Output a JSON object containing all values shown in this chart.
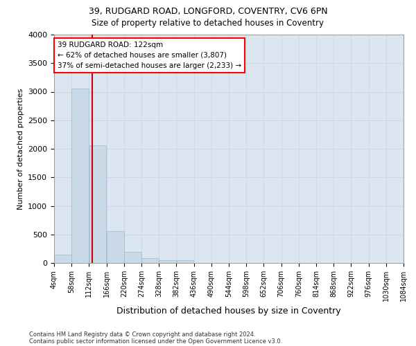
{
  "title_line1": "39, RUDGARD ROAD, LONGFORD, COVENTRY, CV6 6PN",
  "title_line2": "Size of property relative to detached houses in Coventry",
  "xlabel": "Distribution of detached houses by size in Coventry",
  "ylabel": "Number of detached properties",
  "footnote1": "Contains HM Land Registry data © Crown copyright and database right 2024.",
  "footnote2": "Contains public sector information licensed under the Open Government Licence v3.0.",
  "annotation_title": "39 RUDGARD ROAD: 122sqm",
  "annotation_line2": "← 62% of detached houses are smaller (3,807)",
  "annotation_line3": "37% of semi-detached houses are larger (2,233) →",
  "bar_color": "#c9d9e8",
  "bar_edge_color": "#a0b8cc",
  "vline_color": "#cc0000",
  "vline_x": 122,
  "bin_edges": [
    4,
    58,
    112,
    166,
    220,
    274,
    328,
    382,
    436,
    490,
    544,
    598,
    652,
    706,
    760,
    814,
    868,
    922,
    976,
    1030,
    1084
  ],
  "bin_labels": [
    "4sqm",
    "58sqm",
    "112sqm",
    "166sqm",
    "220sqm",
    "274sqm",
    "328sqm",
    "382sqm",
    "436sqm",
    "490sqm",
    "544sqm",
    "598sqm",
    "652sqm",
    "706sqm",
    "760sqm",
    "814sqm",
    "868sqm",
    "922sqm",
    "976sqm",
    "1030sqm",
    "1084sqm"
  ],
  "bar_heights": [
    140,
    3060,
    2060,
    560,
    200,
    80,
    50,
    50,
    0,
    0,
    0,
    0,
    0,
    0,
    0,
    0,
    0,
    0,
    0,
    0
  ],
  "ylim": [
    0,
    4000
  ],
  "yticks": [
    0,
    500,
    1000,
    1500,
    2000,
    2500,
    3000,
    3500,
    4000
  ],
  "grid_color": "#d0d8e8",
  "background_color": "#dce6f0"
}
